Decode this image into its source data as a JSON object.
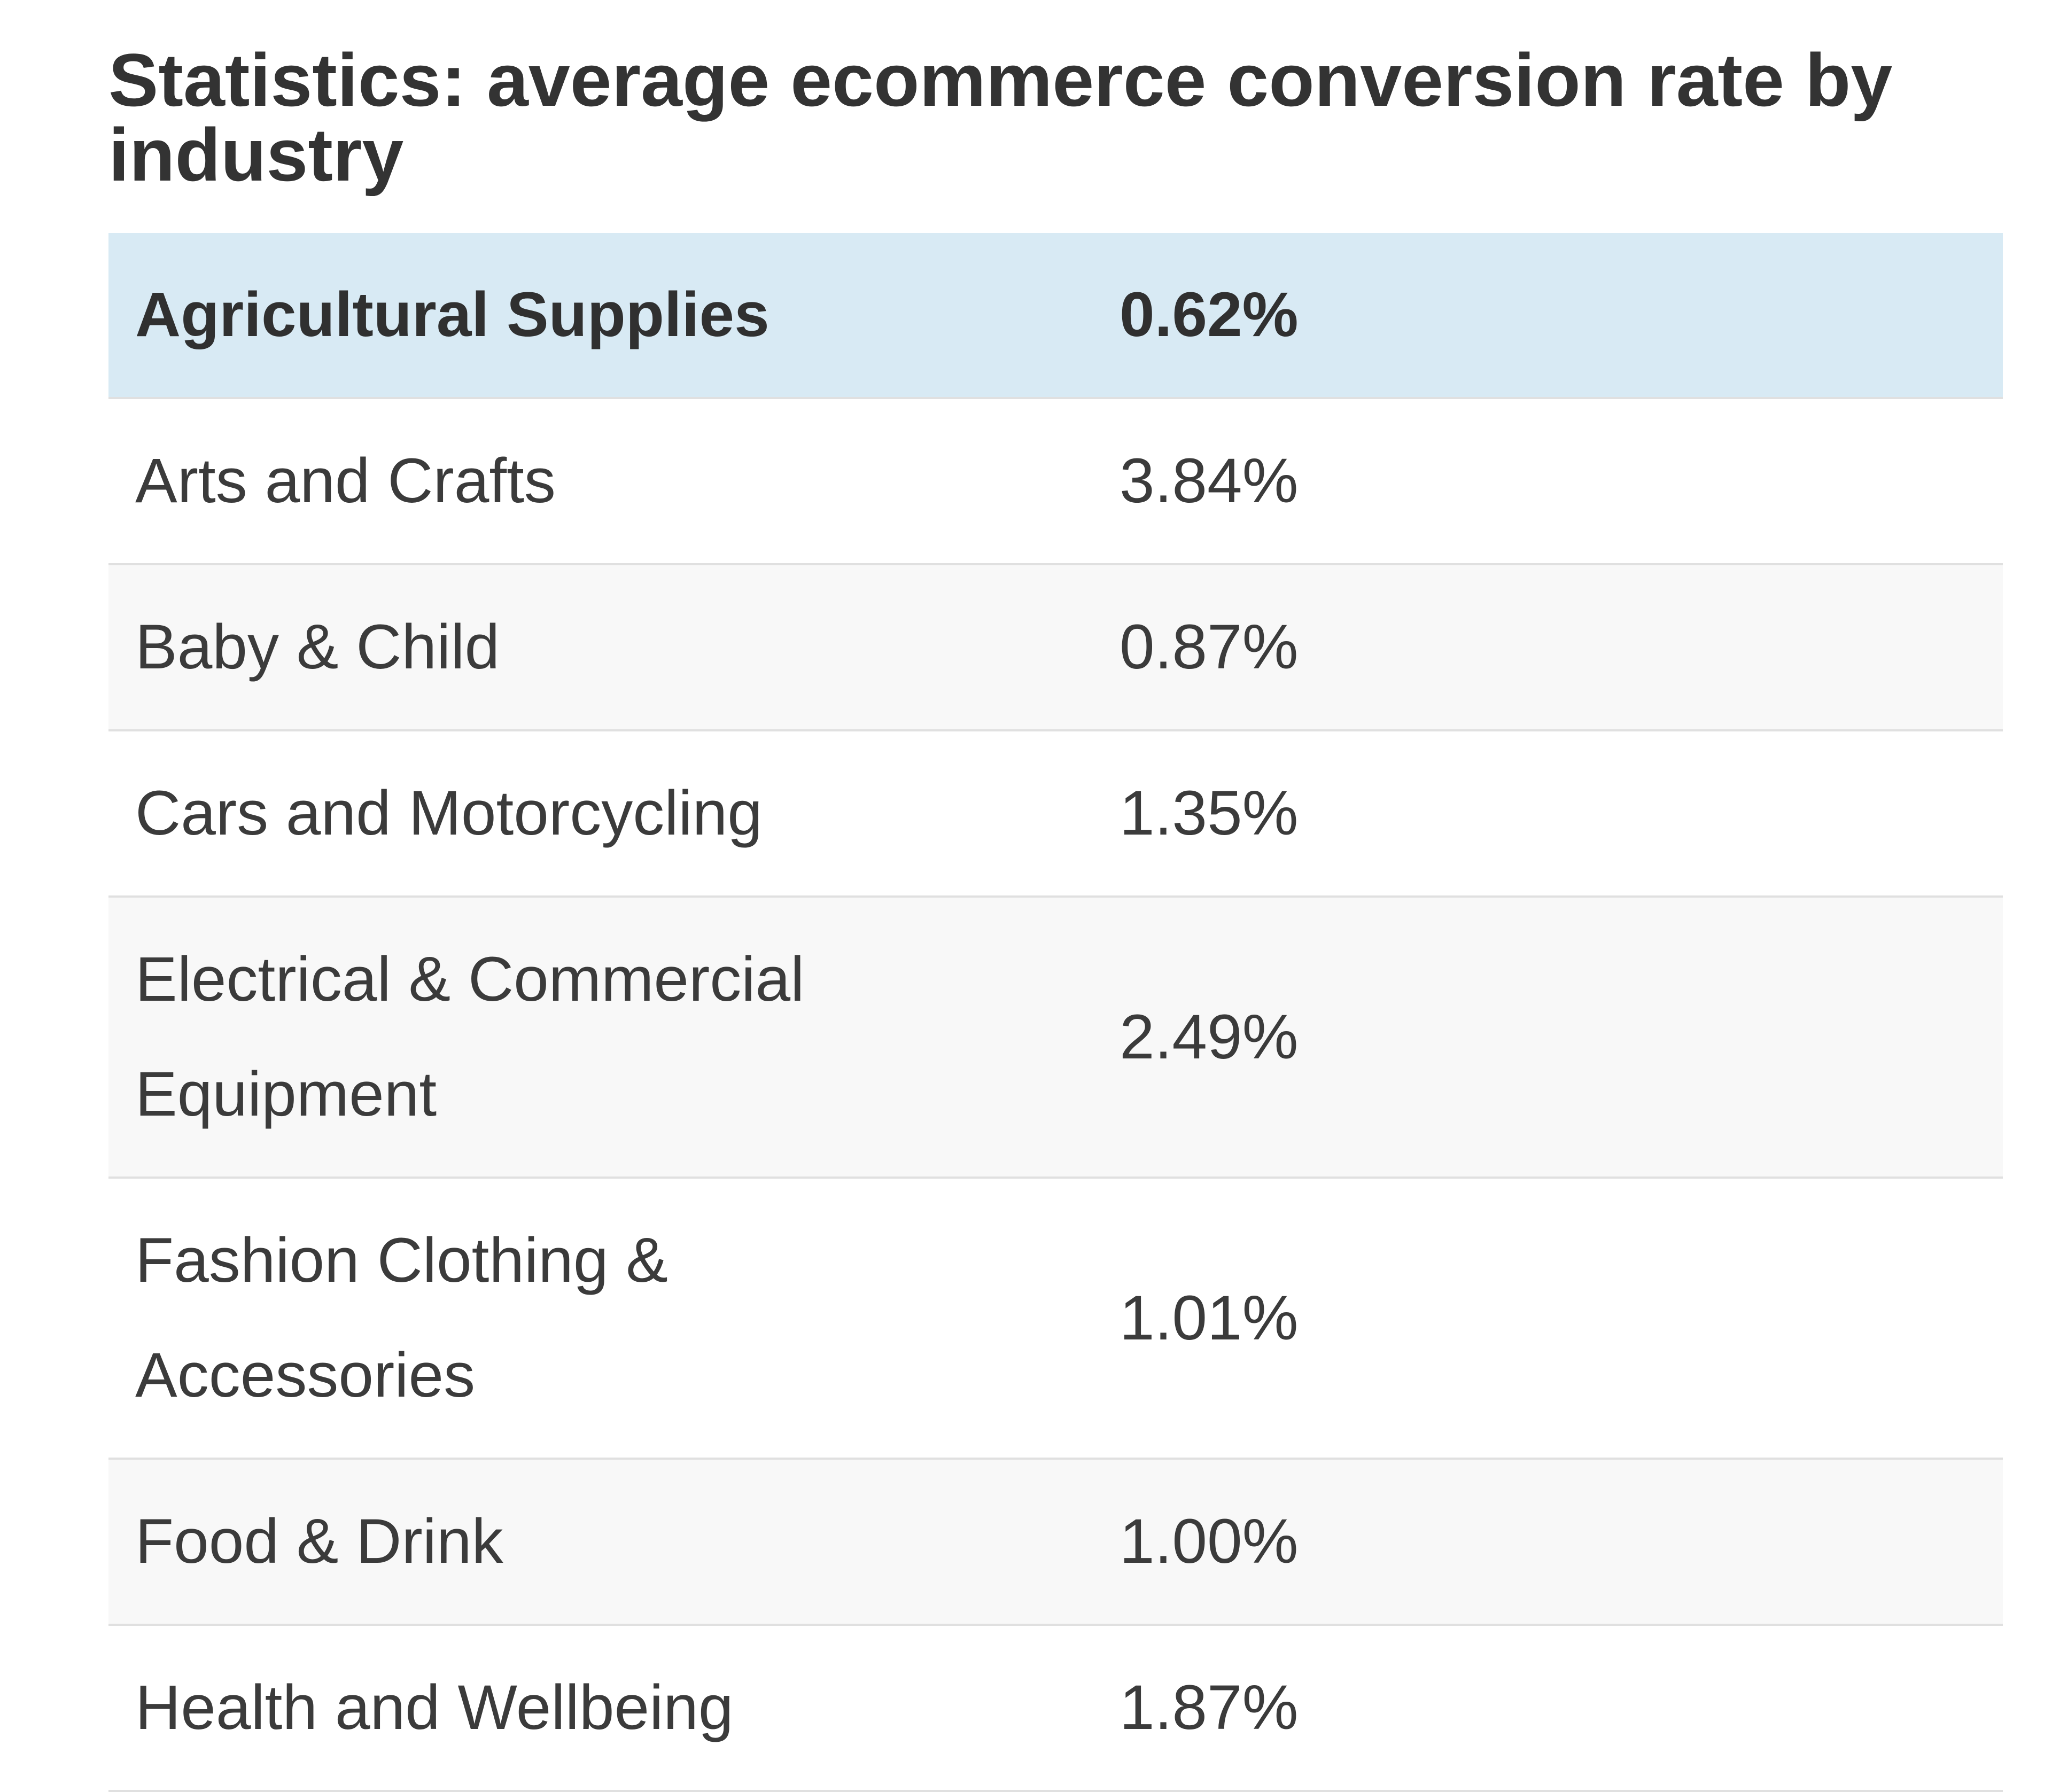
{
  "title": {
    "full": "Statistics: average ecommerce conversion rate by industry",
    "line1": "Statistics: average ecommerce conversion rate by",
    "line2": "industry"
  },
  "table": {
    "highlighted_row": "Agricultural Supplies",
    "rows": [
      {
        "industry": "Agricultural Supplies",
        "rate": "0.62%"
      },
      {
        "industry": "Arts and Crafts",
        "rate": "3.84%"
      },
      {
        "industry": "Baby & Child",
        "rate": "0.87%"
      },
      {
        "industry": "Cars and Motorcycling",
        "rate": "1.35%"
      },
      {
        "industry": "Electrical & Commercial Equipment",
        "rate": "2.49%"
      },
      {
        "industry": "Fashion Clothing & Accessories",
        "rate": "1.01%"
      },
      {
        "industry": "Food & Drink",
        "rate": "1.00%"
      },
      {
        "industry": "Health and Wellbeing",
        "rate": "1.87%"
      }
    ],
    "colors": {
      "highlight_bg": "#d8eaf4",
      "stripe_bg": "#f8f8f8",
      "row_bg": "#ffffff",
      "border": "#e0e0e0",
      "text": "#3b3b3b",
      "title_text": "#333333"
    }
  },
  "chart_data": {
    "type": "table",
    "title": "Statistics: average ecommerce conversion rate by industry",
    "categories": [
      "Agricultural Supplies",
      "Arts and Crafts",
      "Baby & Child",
      "Cars and Motorcycling",
      "Electrical & Commercial Equipment",
      "Fashion Clothing & Accessories",
      "Food & Drink",
      "Health and Wellbeing"
    ],
    "values": [
      0.62,
      3.84,
      0.87,
      1.35,
      2.49,
      1.01,
      1.0,
      1.87
    ],
    "unit": "%"
  }
}
